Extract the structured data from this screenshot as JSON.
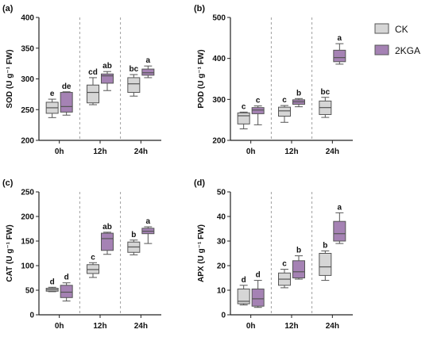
{
  "figure": {
    "colors": {
      "CK": "#d6d6d6",
      "2KGA": "#a582b4",
      "box_stroke": "#555555",
      "axis": "#222222",
      "divider": "#888888"
    },
    "legend": [
      {
        "name": "CK",
        "color": "#d6d6d6"
      },
      {
        "name": "2KGA",
        "color": "#a582b4"
      }
    ]
  },
  "chart_data": [
    {
      "type": "box",
      "panel": "(a)",
      "ylabel": "SOD (U g⁻¹ FW)",
      "ylim": [
        200,
        400
      ],
      "yticks": [
        200,
        250,
        300,
        350,
        400
      ],
      "categories": [
        "0h",
        "12h",
        "24h"
      ],
      "series": [
        {
          "name": "CK",
          "boxes": [
            {
              "min": 237,
              "q1": 244,
              "median": 253,
              "q3": 262,
              "max": 267
            },
            {
              "min": 258,
              "q1": 261,
              "median": 278,
              "q3": 290,
              "max": 302
            },
            {
              "min": 272,
              "q1": 278,
              "median": 292,
              "q3": 302,
              "max": 307
            }
          ],
          "labels": [
            "e",
            "cd",
            "bc"
          ]
        },
        {
          "name": "2KGA",
          "boxes": [
            {
              "min": 241,
              "q1": 246,
              "median": 255,
              "q3": 278,
              "max": 279
            },
            {
              "min": 281,
              "q1": 293,
              "median": 305,
              "q3": 308,
              "max": 312
            },
            {
              "min": 302,
              "q1": 306,
              "median": 310,
              "q3": 316,
              "max": 321
            }
          ],
          "labels": [
            "de",
            "ab",
            "a"
          ]
        }
      ]
    },
    {
      "type": "box",
      "panel": "(b)",
      "ylabel": "POD (U g⁻¹ FW)",
      "ylim": [
        200,
        500
      ],
      "yticks": [
        200,
        300,
        400,
        500
      ],
      "categories": [
        "0h",
        "12h",
        "24h"
      ],
      "series": [
        {
          "name": "CK",
          "boxes": [
            {
              "min": 228,
              "q1": 240,
              "median": 260,
              "q3": 267,
              "max": 269
            },
            {
              "min": 244,
              "q1": 259,
              "median": 272,
              "q3": 281,
              "max": 285
            },
            {
              "min": 256,
              "q1": 263,
              "median": 280,
              "q3": 296,
              "max": 305
            }
          ],
          "labels": [
            "c",
            "c",
            "bc"
          ]
        },
        {
          "name": "2KGA",
          "boxes": [
            {
              "min": 238,
              "q1": 265,
              "median": 274,
              "q3": 280,
              "max": 284
            },
            {
              "min": 282,
              "q1": 288,
              "median": 294,
              "q3": 299,
              "max": 302
            },
            {
              "min": 386,
              "q1": 392,
              "median": 402,
              "q3": 420,
              "max": 436
            }
          ],
          "labels": [
            "c",
            "b",
            "a"
          ]
        }
      ]
    },
    {
      "type": "box",
      "panel": "(c)",
      "ylabel": "CAT (U g⁻¹ FW)",
      "ylim": [
        0,
        250
      ],
      "yticks": [
        0,
        50,
        100,
        150,
        200,
        250
      ],
      "categories": [
        "0h",
        "12h",
        "24h"
      ],
      "series": [
        {
          "name": "CK",
          "boxes": [
            {
              "min": 47,
              "q1": 48,
              "median": 51,
              "q3": 54,
              "max": 56
            },
            {
              "min": 76,
              "q1": 84,
              "median": 92,
              "q3": 102,
              "max": 106
            },
            {
              "min": 122,
              "q1": 127,
              "median": 138,
              "q3": 148,
              "max": 152
            }
          ],
          "labels": [
            "d",
            "c",
            "b"
          ]
        },
        {
          "name": "2KGA",
          "boxes": [
            {
              "min": 28,
              "q1": 35,
              "median": 46,
              "q3": 60,
              "max": 65
            },
            {
              "min": 123,
              "q1": 131,
              "median": 155,
              "q3": 166,
              "max": 168
            },
            {
              "min": 145,
              "q1": 165,
              "median": 170,
              "q3": 176,
              "max": 179
            }
          ],
          "labels": [
            "d",
            "ab",
            "a"
          ]
        }
      ]
    },
    {
      "type": "box",
      "panel": "(d)",
      "ylabel": "APX (U g⁻¹ FW)",
      "ylim": [
        0,
        50
      ],
      "yticks": [
        0,
        10,
        20,
        30,
        40,
        50
      ],
      "categories": [
        "0h",
        "12h",
        "24h"
      ],
      "series": [
        {
          "name": "CK",
          "boxes": [
            {
              "min": 4,
              "q1": 4.5,
              "median": 5.5,
              "q3": 10.5,
              "max": 12
            },
            {
              "min": 11,
              "q1": 12,
              "median": 14.5,
              "q3": 17,
              "max": 18.5
            },
            {
              "min": 14,
              "q1": 16,
              "median": 19.5,
              "q3": 25,
              "max": 26
            }
          ],
          "labels": [
            "d",
            "c",
            "b"
          ]
        },
        {
          "name": "2KGA",
          "boxes": [
            {
              "min": 3,
              "q1": 3.5,
              "median": 6.5,
              "q3": 10.5,
              "max": 14
            },
            {
              "min": 14.5,
              "q1": 15,
              "median": 17.5,
              "q3": 22,
              "max": 24
            },
            {
              "min": 29,
              "q1": 30,
              "median": 33,
              "q3": 38,
              "max": 41.5
            }
          ],
          "labels": [
            "d",
            "b",
            "a"
          ]
        }
      ]
    }
  ]
}
